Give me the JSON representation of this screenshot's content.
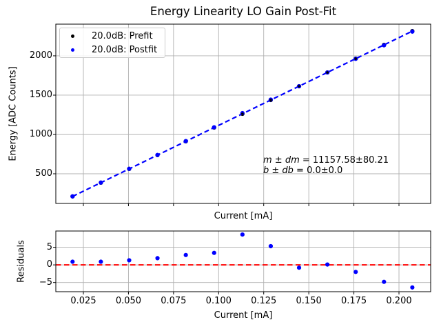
{
  "title": "Energy Linearity LO Gain Post-Fit",
  "colors": {
    "prefit": "#000000",
    "postfit": "#0000ff",
    "fit_line": "#0000ff",
    "zero_line": "#ff0000",
    "grid": "#b0b0b0",
    "axes": "#000000",
    "legend_border": "#cccccc"
  },
  "legend": {
    "items": [
      {
        "label": "20.0dB: Prefit",
        "color": "#000000"
      },
      {
        "label": "20.0dB: Postfit",
        "color": "#0000ff"
      }
    ]
  },
  "annotation": {
    "line1_math": "m ± dm",
    "line1_rest": " = 11157.58±80.21",
    "line2_math": "b ± db",
    "line2_rest": " = 0.0±0.0"
  },
  "chart_data": [
    {
      "type": "scatter",
      "name": "energy-linearity-main",
      "title": "Energy Linearity LO Gain Post-Fit",
      "xlabel": "Current [mA]",
      "ylabel": "Energy [ADC Counts]",
      "xlim": [
        0.00972,
        0.21757
      ],
      "ylim": [
        123,
        2403
      ],
      "xticks": [
        0.025,
        0.05,
        0.075,
        0.1,
        0.125,
        0.15,
        0.175,
        0.2
      ],
      "xticklabels": [],
      "yticks": [
        500,
        1000,
        1500,
        2000
      ],
      "yticklabels": [
        "500",
        "1000",
        "1500",
        "2000"
      ],
      "grid": true,
      "x": [
        0.019,
        0.0347,
        0.0504,
        0.0661,
        0.0818,
        0.0975,
        0.1132,
        0.1289,
        0.1446,
        0.1603,
        0.176,
        0.1917,
        0.2074
      ],
      "series": [
        {
          "name": "20.0dB: Prefit",
          "marker_color": "#000000",
          "y": [
            212.0,
            387.2,
            562.3,
            737.5,
            912.7,
            1087.9,
            1263.0,
            1438.2,
            1613.4,
            1788.6,
            1963.7,
            2138.9,
            2314.1
          ]
        },
        {
          "name": "20.0dB: Postfit",
          "marker_color": "#0000ff",
          "y": [
            212.9,
            388.1,
            563.6,
            739.4,
            915.5,
            1091.3,
            1271.6,
            1443.5,
            1612.6,
            1788.7,
            1961.7,
            2134.1,
            2307.7
          ]
        }
      ],
      "fit_line": {
        "style": "dashed",
        "color": "#0000ff",
        "m": 11157.58,
        "b": 0.0,
        "x_start": 0.019,
        "x_end": 0.2074
      },
      "fit": {
        "m": 11157.58,
        "dm": 80.21,
        "b": 0.0,
        "db": 0.0
      },
      "prefit_peek_indices": [
        6,
        7,
        8,
        9,
        10
      ]
    },
    {
      "type": "scatter",
      "name": "residuals",
      "xlabel": "Current [mA]",
      "ylabel": "Residuals",
      "xlim": [
        0.00972,
        0.21757
      ],
      "ylim": [
        -7.6,
        9.6
      ],
      "xticks": [
        0.025,
        0.05,
        0.075,
        0.1,
        0.125,
        0.15,
        0.175,
        0.2
      ],
      "xticklabels": [
        "0.025",
        "0.050",
        "0.075",
        "0.100",
        "0.125",
        "0.150",
        "0.175",
        "0.200"
      ],
      "yticks": [
        -5,
        0,
        5
      ],
      "yticklabels": [
        "−5",
        "0",
        "5"
      ],
      "grid": true,
      "marker_color": "#0000ff",
      "x": [
        0.019,
        0.0347,
        0.0504,
        0.0661,
        0.0818,
        0.0975,
        0.1132,
        0.1289,
        0.1446,
        0.1603,
        0.176,
        0.1917,
        0.2074
      ],
      "values": [
        0.9,
        0.9,
        1.3,
        1.9,
        2.8,
        3.4,
        8.6,
        5.3,
        -0.8,
        0.1,
        -2.0,
        -4.8,
        -6.4
      ],
      "zero_line": {
        "y": 0,
        "color": "#ff0000",
        "style": "dashed"
      }
    }
  ]
}
